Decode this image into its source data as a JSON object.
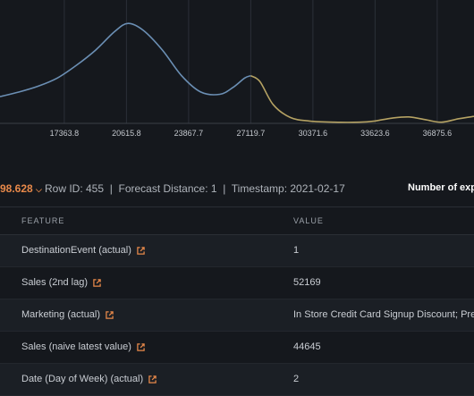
{
  "chart_data": {
    "type": "line",
    "x_ticks": [
      "17363.8",
      "20615.8",
      "23867.7",
      "27119.7",
      "30371.6",
      "33623.6",
      "36875.6"
    ],
    "tick_values": [
      17363.8,
      20615.8,
      23867.7,
      27119.7,
      30371.6,
      33623.6,
      36875.6
    ],
    "series": [
      {
        "color": "#6b8fb4",
        "x": [
          14000,
          15000,
          16000,
          17000,
          18000,
          19000,
          20000,
          20700,
          21500,
          22500,
          23500,
          24500,
          25500,
          26200,
          26800,
          27120
        ],
        "y": [
          0.23,
          0.27,
          0.32,
          0.39,
          0.5,
          0.63,
          0.79,
          0.86,
          0.8,
          0.63,
          0.41,
          0.27,
          0.25,
          0.31,
          0.39,
          0.41
        ]
      },
      {
        "color": "#b5a263",
        "x": [
          27120,
          27600,
          28300,
          29200,
          30200,
          31500,
          32800,
          33600,
          34500,
          35400,
          36300,
          37100,
          38000,
          38800
        ],
        "y": [
          0.41,
          0.36,
          0.16,
          0.05,
          0.02,
          0.01,
          0.01,
          0.02,
          0.045,
          0.055,
          0.03,
          0.01,
          0.04,
          0.06
        ]
      }
    ],
    "xlim": [
      14000,
      38800
    ],
    "ylim": [
      0,
      1
    ],
    "grid": true
  },
  "summary": {
    "prediction": "98.628",
    "row_id": "Row ID: 455",
    "forecast_distance": "Forecast Distance: 1",
    "timestamp": "Timestamp: 2021-02-17",
    "separator": "|",
    "explanations_label": "Number of expla"
  },
  "table": {
    "headers": {
      "feature": "FEATURE",
      "value": "VALUE"
    },
    "rows": [
      {
        "feature": "DestinationEvent (actual)",
        "value": "1"
      },
      {
        "feature": "Sales (2nd lag)",
        "value": "52169"
      },
      {
        "feature": "Marketing (actual)",
        "value": "In Store Credit Card Signup Discount; President"
      },
      {
        "feature": "Sales (naive latest value)",
        "value": "44645"
      },
      {
        "feature": "Date (Day of Week) (actual)",
        "value": "2"
      }
    ]
  },
  "colors": {
    "accent": "#e8894a",
    "external_link_icon": "#e8894a"
  },
  "icons": {
    "dropdown": "chevron-down-icon",
    "feature_link": "external-link-icon"
  }
}
